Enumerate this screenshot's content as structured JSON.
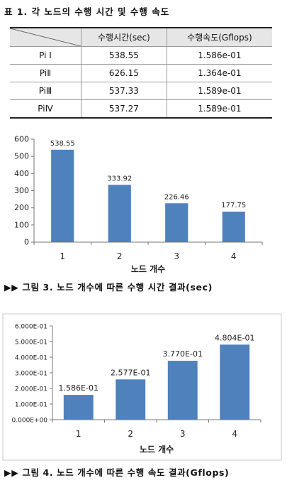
{
  "table": {
    "caption": "표 1. 각 노드의 수행 시간 및 수행 속도",
    "headers": [
      "",
      "수행시간(sec)",
      "수행속도(Gflops)"
    ],
    "rows": [
      [
        "Pi I",
        "538.55",
        "1.586e-01"
      ],
      [
        "PiⅡ",
        "626.15",
        "1.364e-01"
      ],
      [
        "PiⅢ",
        "537.33",
        "1.589e-01"
      ],
      [
        "PiⅣ",
        "537.27",
        "1.589e-01"
      ]
    ]
  },
  "chart_data": [
    {
      "type": "bar",
      "title": "",
      "xlabel": "노드 개수",
      "ylabel": "",
      "categories": [
        "1",
        "2",
        "3",
        "4"
      ],
      "values": [
        538.55,
        333.92,
        226.46,
        177.75
      ],
      "value_labels": [
        "538.55",
        "333.92",
        "226.46",
        "177.75"
      ],
      "ylim": [
        0,
        600
      ],
      "yticks": [
        0,
        100,
        200,
        300,
        400,
        500,
        600
      ],
      "ytick_labels": [
        "0",
        "100",
        "200",
        "300",
        "400",
        "500",
        "600"
      ],
      "bar_color": "#4f81bd",
      "caption": "▶▶ 그림 3. 노드 개수에 따른 수행 시간 결과(sec)"
    },
    {
      "type": "bar",
      "title": "",
      "xlabel": "노드 개수",
      "ylabel": "",
      "categories": [
        "1",
        "2",
        "3",
        "4"
      ],
      "values": [
        0.1586,
        0.2577,
        0.377,
        0.4804
      ],
      "value_labels": [
        "1.586E-01",
        "2.577E-01",
        "3.770E-01",
        "4.804E-01"
      ],
      "ylim": [
        0,
        0.6
      ],
      "yticks": [
        0,
        0.1,
        0.2,
        0.3,
        0.4,
        0.5,
        0.6
      ],
      "ytick_labels": [
        "0.000E+00",
        "1.000E-01",
        "2.000E-01",
        "3.000E-01",
        "4.000E-01",
        "5.000E-01",
        "6.000E-01"
      ],
      "bar_color": "#4f81bd",
      "caption": "▶▶ 그림 4. 노드 개수에 따른 수행 속도 결과(Gflops)"
    }
  ]
}
